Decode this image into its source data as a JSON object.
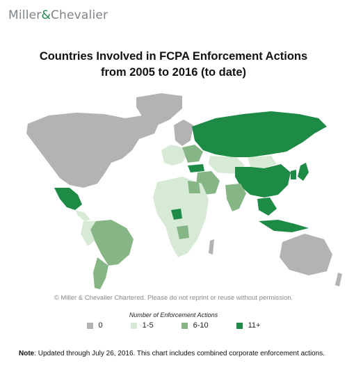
{
  "brand": {
    "name_left": "Miller",
    "amp": "&",
    "name_right": "Chevalier"
  },
  "title": {
    "line1": "Countries Involved in FCPA Enforcement Actions",
    "line2": "from 2005 to 2016 (to date)"
  },
  "copyright": "© Miller & Chevalier Chartered. Please do not reprint or reuse without permission.",
  "legend": {
    "title": "Number of Enforcement Actions",
    "items": [
      {
        "label": "0",
        "color": "#b3b3b3"
      },
      {
        "label": "1-5",
        "color": "#d6ead6"
      },
      {
        "label": "6-10",
        "color": "#86b685"
      },
      {
        "label": "11+",
        "color": "#1d8a45"
      }
    ]
  },
  "note": {
    "label": "Note",
    "text": ": Updated through July 26, 2016. This chart includes combined corporate enforcement actions."
  }
}
